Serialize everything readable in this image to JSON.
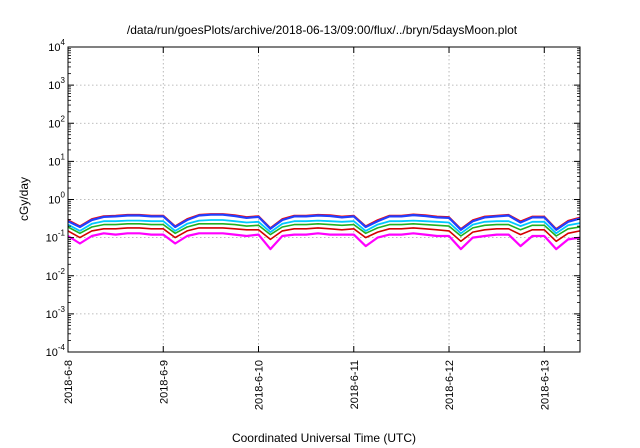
{
  "chart_data": {
    "type": "line",
    "title": "/data/run/goesPlots/archive/2018-06-13/09:00/flux/../bryn/5daysMoon.plot",
    "xlabel": "Coordinated Universal Time (UTC)",
    "ylabel": "cGy/day",
    "yscale": "log",
    "ylim": [
      0.0001,
      10000
    ],
    "xlim": [
      "2018-06-08 00:00",
      "2018-06-13 09:00"
    ],
    "grid": true,
    "legend": "none",
    "x_ticks": [
      {
        "value": "2018-06-08",
        "label": "2018-6-8"
      },
      {
        "value": "2018-06-09",
        "label": "2018-6-9"
      },
      {
        "value": "2018-06-10",
        "label": "2018-6-10"
      },
      {
        "value": "2018-06-11",
        "label": "2018-6-11"
      },
      {
        "value": "2018-06-12",
        "label": "2018-6-12"
      },
      {
        "value": "2018-06-13",
        "label": "2018-6-13"
      }
    ],
    "y_ticks": [
      {
        "value": 0.0001,
        "base": "10",
        "exp": "-4"
      },
      {
        "value": 0.001,
        "base": "10",
        "exp": "-3"
      },
      {
        "value": 0.01,
        "base": "10",
        "exp": "-2"
      },
      {
        "value": 0.1,
        "base": "10",
        "exp": "-1"
      },
      {
        "value": 1,
        "base": "10",
        "exp": "0"
      },
      {
        "value": 10,
        "base": "10",
        "exp": "1"
      },
      {
        "value": 100,
        "base": "10",
        "exp": "2"
      },
      {
        "value": 1000,
        "base": "10",
        "exp": "3"
      },
      {
        "value": 10000,
        "base": "10",
        "exp": "4"
      }
    ],
    "x": [
      "2018-06-08 00:00",
      "2018-06-08 03:00",
      "2018-06-08 06:00",
      "2018-06-08 09:00",
      "2018-06-08 12:00",
      "2018-06-08 15:00",
      "2018-06-08 18:00",
      "2018-06-08 21:00",
      "2018-06-09 00:00",
      "2018-06-09 03:00",
      "2018-06-09 06:00",
      "2018-06-09 09:00",
      "2018-06-09 12:00",
      "2018-06-09 15:00",
      "2018-06-09 18:00",
      "2018-06-09 21:00",
      "2018-06-10 00:00",
      "2018-06-10 03:00",
      "2018-06-10 06:00",
      "2018-06-10 09:00",
      "2018-06-10 12:00",
      "2018-06-10 15:00",
      "2018-06-10 18:00",
      "2018-06-10 21:00",
      "2018-06-11 00:00",
      "2018-06-11 03:00",
      "2018-06-11 06:00",
      "2018-06-11 09:00",
      "2018-06-11 12:00",
      "2018-06-11 15:00",
      "2018-06-11 18:00",
      "2018-06-11 21:00",
      "2018-06-12 00:00",
      "2018-06-12 03:00",
      "2018-06-12 06:00",
      "2018-06-12 09:00",
      "2018-06-12 12:00",
      "2018-06-12 15:00",
      "2018-06-12 18:00",
      "2018-06-12 21:00",
      "2018-06-13 00:00",
      "2018-06-13 03:00",
      "2018-06-13 06:00",
      "2018-06-13 09:00"
    ],
    "series": [
      {
        "color": "#ff00ff",
        "width": 2.2,
        "values": [
          0.11,
          0.07,
          0.11,
          0.13,
          0.12,
          0.13,
          0.13,
          0.12,
          0.12,
          0.07,
          0.11,
          0.13,
          0.13,
          0.13,
          0.12,
          0.11,
          0.12,
          0.05,
          0.11,
          0.12,
          0.12,
          0.13,
          0.12,
          0.12,
          0.12,
          0.06,
          0.1,
          0.12,
          0.12,
          0.13,
          0.12,
          0.11,
          0.11,
          0.05,
          0.1,
          0.11,
          0.12,
          0.12,
          0.06,
          0.11,
          0.11,
          0.05,
          0.09,
          0.1
        ]
      },
      {
        "color": "#d40000",
        "width": 1.6,
        "values": [
          0.15,
          0.1,
          0.15,
          0.17,
          0.17,
          0.18,
          0.18,
          0.17,
          0.17,
          0.1,
          0.15,
          0.18,
          0.18,
          0.18,
          0.17,
          0.16,
          0.16,
          0.09,
          0.15,
          0.17,
          0.17,
          0.18,
          0.17,
          0.16,
          0.17,
          0.1,
          0.14,
          0.17,
          0.17,
          0.18,
          0.17,
          0.16,
          0.15,
          0.08,
          0.14,
          0.16,
          0.17,
          0.17,
          0.12,
          0.16,
          0.16,
          0.08,
          0.13,
          0.15
        ]
      },
      {
        "color": "#20b020",
        "width": 1.6,
        "values": [
          0.19,
          0.13,
          0.19,
          0.22,
          0.22,
          0.23,
          0.23,
          0.22,
          0.22,
          0.13,
          0.19,
          0.23,
          0.23,
          0.23,
          0.22,
          0.2,
          0.21,
          0.12,
          0.19,
          0.22,
          0.22,
          0.23,
          0.22,
          0.21,
          0.22,
          0.13,
          0.18,
          0.22,
          0.22,
          0.23,
          0.22,
          0.21,
          0.2,
          0.11,
          0.18,
          0.21,
          0.22,
          0.22,
          0.16,
          0.21,
          0.21,
          0.11,
          0.17,
          0.19
        ]
      },
      {
        "color": "#00c8ff",
        "width": 1.8,
        "values": [
          0.22,
          0.15,
          0.23,
          0.27,
          0.27,
          0.28,
          0.28,
          0.27,
          0.27,
          0.15,
          0.23,
          0.28,
          0.29,
          0.29,
          0.27,
          0.25,
          0.26,
          0.14,
          0.23,
          0.27,
          0.27,
          0.28,
          0.27,
          0.26,
          0.27,
          0.15,
          0.22,
          0.27,
          0.27,
          0.28,
          0.27,
          0.26,
          0.25,
          0.13,
          0.22,
          0.26,
          0.27,
          0.27,
          0.2,
          0.26,
          0.26,
          0.13,
          0.21,
          0.24
        ]
      },
      {
        "color": "#ff0000",
        "width": 1.6,
        "values": [
          0.29,
          0.2,
          0.31,
          0.37,
          0.38,
          0.4,
          0.4,
          0.38,
          0.38,
          0.2,
          0.31,
          0.4,
          0.42,
          0.42,
          0.39,
          0.35,
          0.37,
          0.18,
          0.31,
          0.38,
          0.38,
          0.4,
          0.39,
          0.36,
          0.38,
          0.2,
          0.29,
          0.38,
          0.38,
          0.41,
          0.39,
          0.36,
          0.35,
          0.17,
          0.29,
          0.36,
          0.38,
          0.4,
          0.27,
          0.36,
          0.36,
          0.17,
          0.28,
          0.34
        ]
      },
      {
        "color": "#2040ff",
        "width": 2.2,
        "values": [
          0.27,
          0.19,
          0.29,
          0.35,
          0.36,
          0.38,
          0.38,
          0.36,
          0.36,
          0.19,
          0.29,
          0.38,
          0.4,
          0.4,
          0.37,
          0.33,
          0.35,
          0.17,
          0.29,
          0.36,
          0.36,
          0.38,
          0.37,
          0.34,
          0.36,
          0.19,
          0.27,
          0.36,
          0.36,
          0.39,
          0.37,
          0.34,
          0.33,
          0.16,
          0.27,
          0.34,
          0.36,
          0.38,
          0.25,
          0.34,
          0.34,
          0.16,
          0.26,
          0.32
        ]
      }
    ]
  }
}
